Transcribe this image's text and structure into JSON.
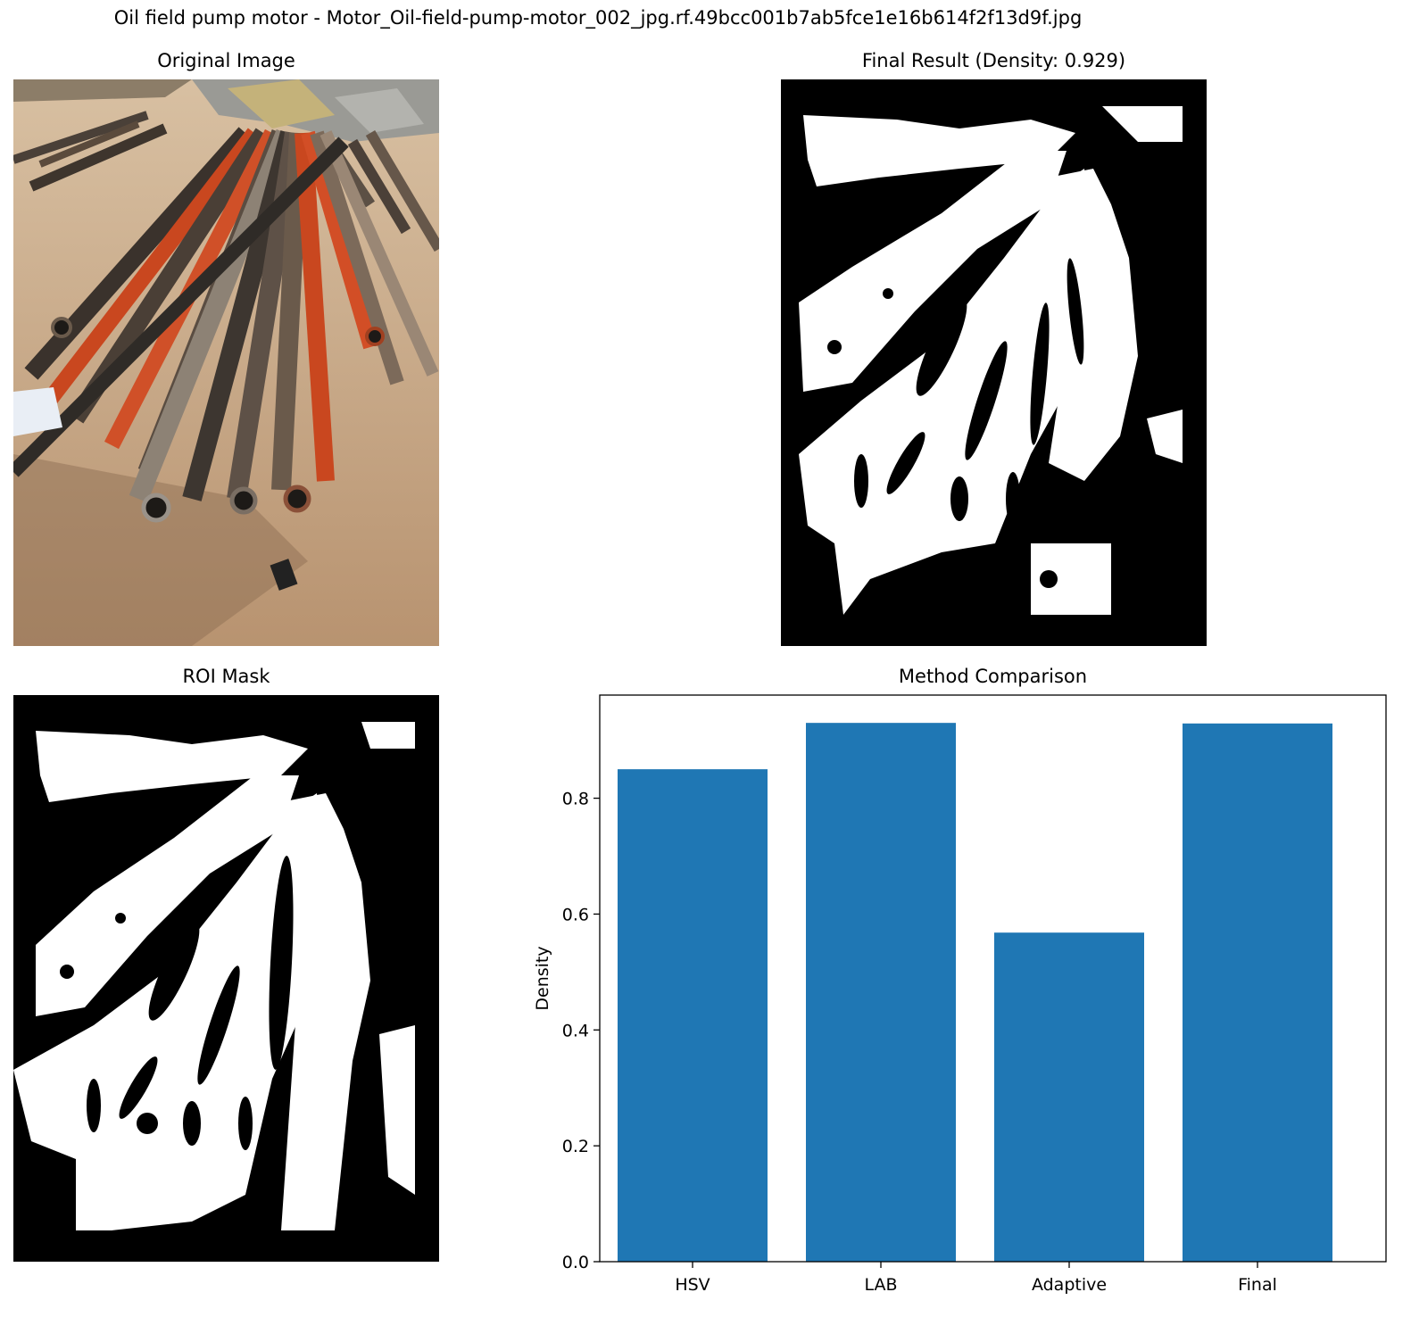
{
  "figure": {
    "suptitle": "Oil field pump motor - Motor_Oil-field-pump-motor_002_jpg.rf.49bcc001b7ab5fce1e16b614f2f13d9f.jpg"
  },
  "panels": {
    "original": {
      "title": "Original Image"
    },
    "final": {
      "title": "Final Result (Density: 0.929)"
    },
    "roi": {
      "title": "ROI Mask"
    },
    "comparison": {
      "title": "Method Comparison"
    }
  },
  "colors": {
    "bar": "#1f77b4",
    "mask_bg": "#000000",
    "mask_fg": "#ffffff",
    "ground": "#c9a783",
    "pipe_orange": "#c9471f",
    "pipe_dark": "#3b352f"
  },
  "chart_data": {
    "type": "bar",
    "title": "Method Comparison",
    "xlabel": "",
    "ylabel": "Density",
    "categories": [
      "HSV",
      "LAB",
      "Adaptive",
      "Final"
    ],
    "values": [
      0.85,
      0.93,
      0.568,
      0.929
    ],
    "ylim": [
      0,
      0.978
    ],
    "yticks": [
      0.0,
      0.2,
      0.4,
      0.6,
      0.8
    ],
    "ytick_labels": [
      "0.0",
      "0.2",
      "0.4",
      "0.6",
      "0.8"
    ],
    "grid": false,
    "legend": "none"
  }
}
